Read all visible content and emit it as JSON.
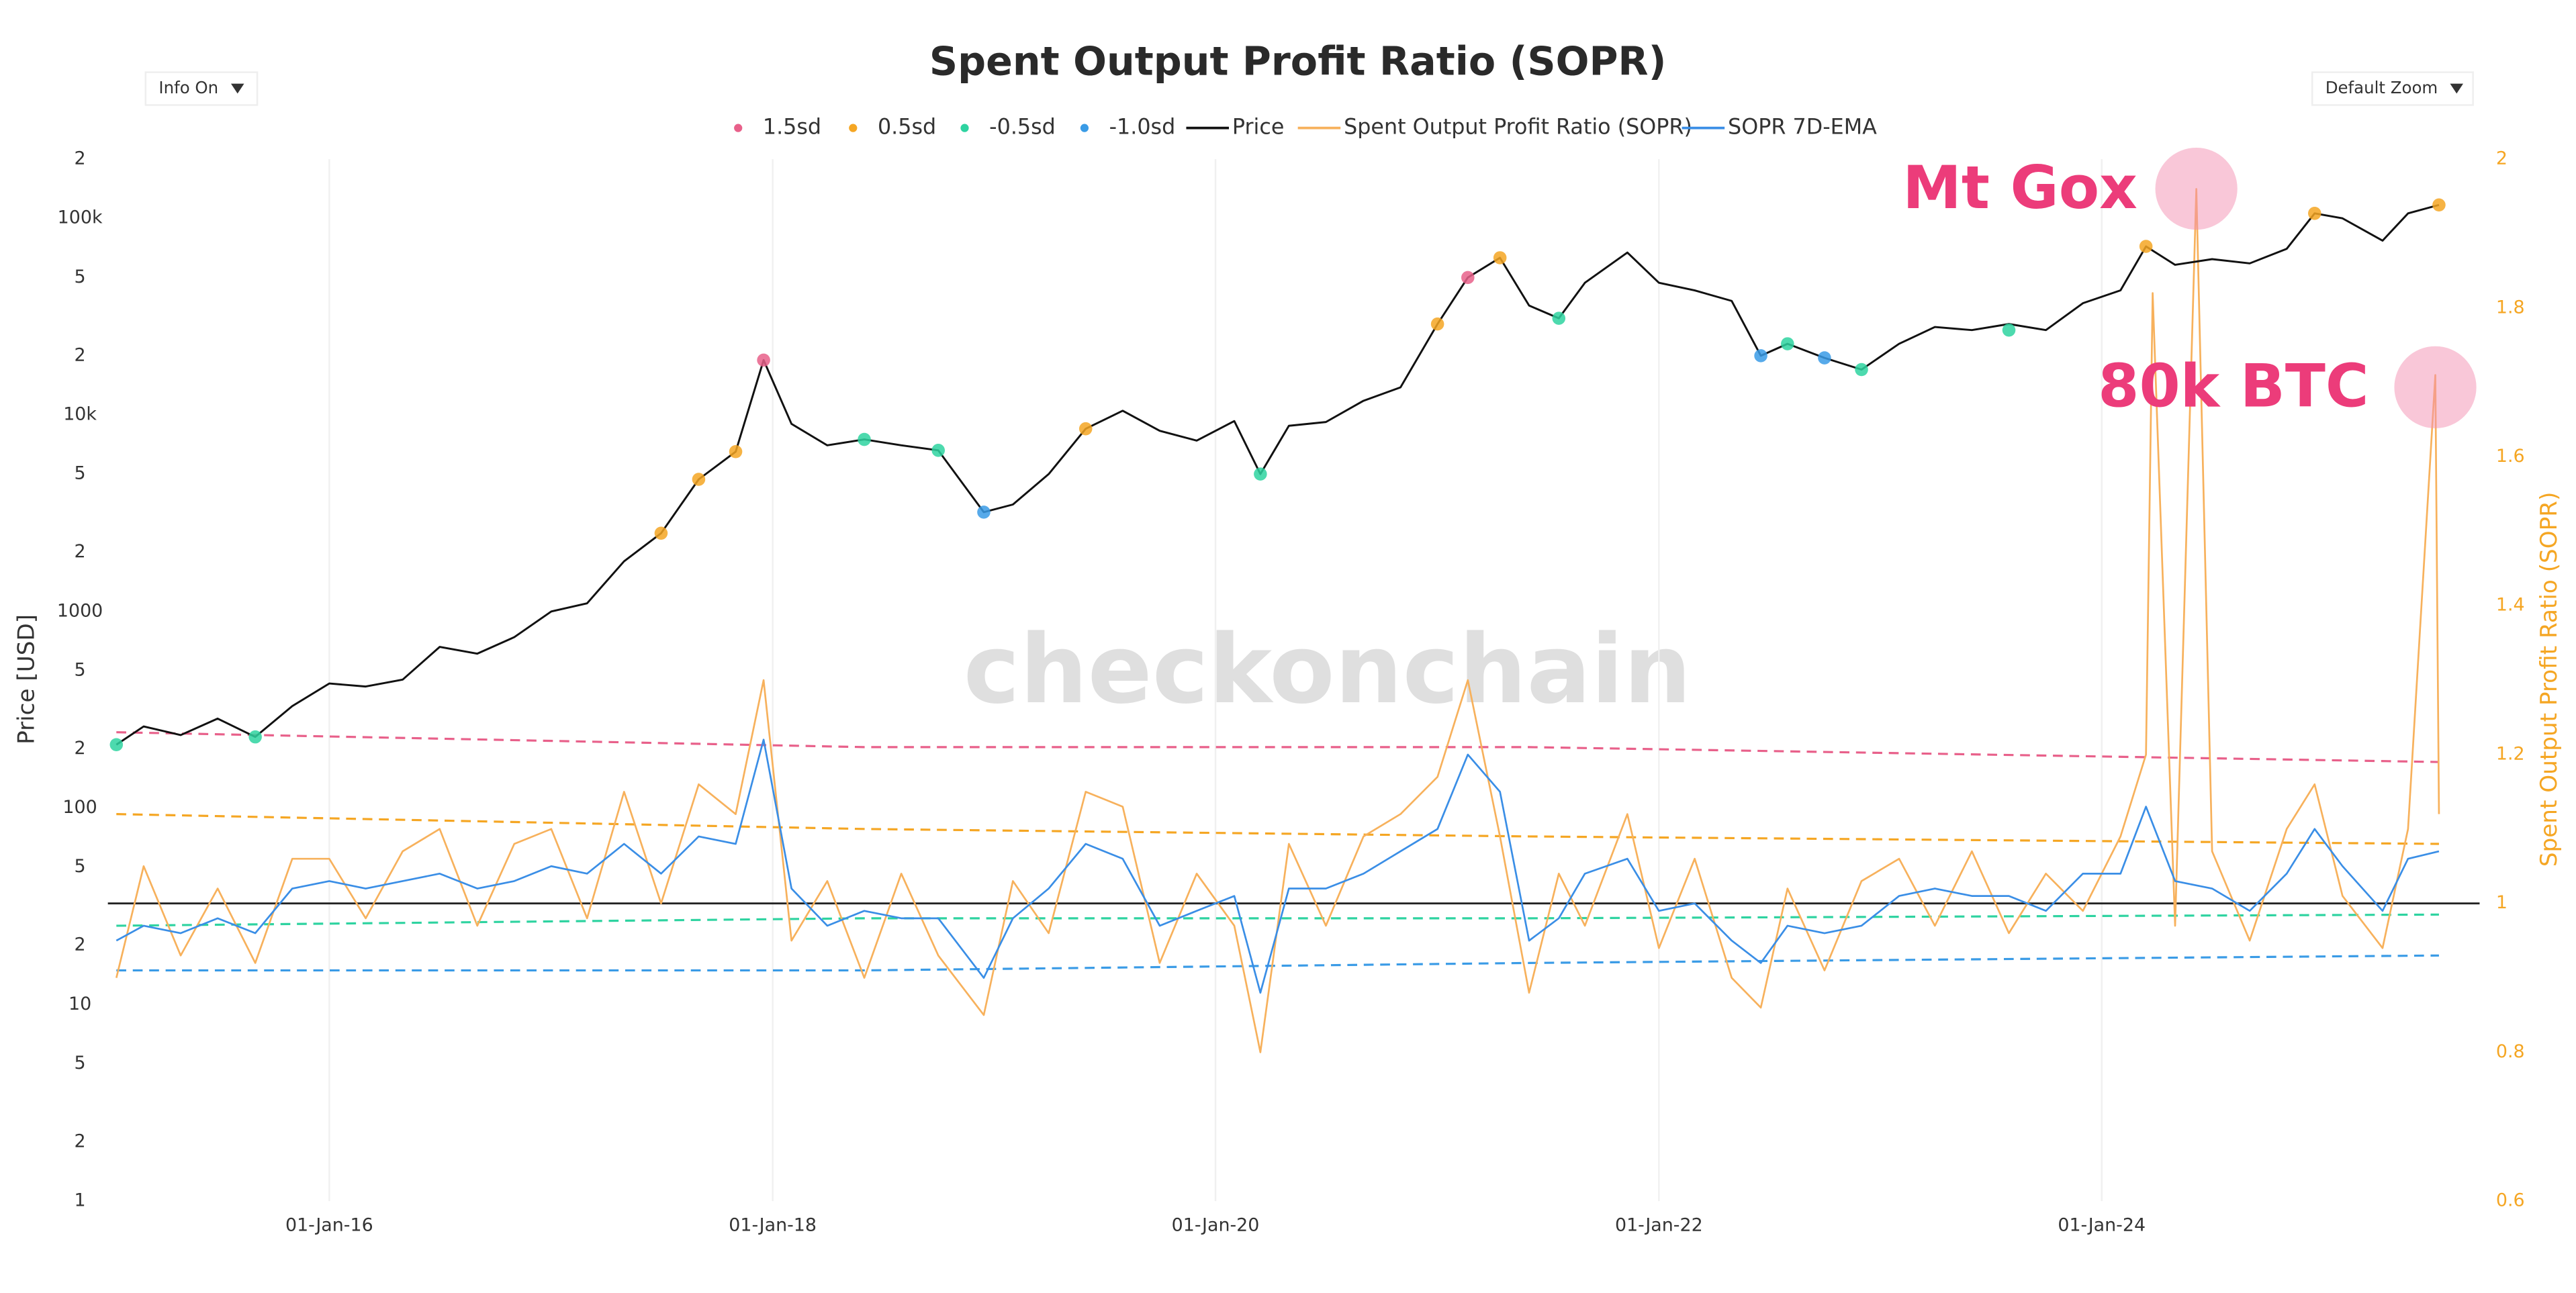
{
  "chart_data": {
    "type": "line",
    "title": "Spent Output Profit Ratio (SOPR)",
    "controls": [
      "Info On",
      "Default Zoom"
    ],
    "watermark": "checkonchain",
    "ylabel": "Price [USD]",
    "y2label": "Spent Output Profit Ratio (SOPR)",
    "log_y": true,
    "grid": true,
    "baseline": 1,
    "xlim": [
      "2015-01-01",
      "2025-09-15"
    ],
    "xticks": [
      {
        "value": "2016-01-01",
        "label": "01-Jan-16"
      },
      {
        "value": "2018-01-01",
        "label": "01-Jan-18"
      },
      {
        "value": "2020-01-01",
        "label": "01-Jan-20"
      },
      {
        "value": "2022-01-01",
        "label": "01-Jan-22"
      },
      {
        "value": "2024-01-01",
        "label": "01-Jan-24"
      }
    ],
    "ylim": [
      1,
      200000
    ],
    "yticks": [
      1,
      2,
      5,
      10,
      {
        "value": 20,
        "label": "2"
      },
      {
        "value": 50,
        "label": "5"
      },
      100,
      {
        "value": 200,
        "label": "2"
      },
      {
        "value": 500,
        "label": "5"
      },
      1000,
      {
        "value": 2000,
        "label": "2"
      },
      {
        "value": 5000,
        "label": "5"
      },
      {
        "value": 10000,
        "label": "10k"
      },
      {
        "value": 20000,
        "label": "2"
      },
      {
        "value": 50000,
        "label": "5"
      },
      {
        "value": 100000,
        "label": "100k"
      },
      {
        "value": 200000,
        "label": "2"
      }
    ],
    "y2lim": [
      0.6,
      2
    ],
    "y2ticks": [
      0.6,
      0.8,
      1,
      1.2,
      1.4,
      1.6,
      1.8,
      2
    ],
    "series": [
      {
        "name": "1.5sd",
        "kind": "marker",
        "color": "#e8608a",
        "x": [
          "2017-12-17",
          "2021-02-20"
        ],
        "values": [
          19000,
          50000
        ],
        "band": {
          "x": [
            "2015-01-15",
            "2018-06-01",
            "2021-06-01",
            "2025-07-10"
          ],
          "values": [
            1.23,
            1.21,
            1.21,
            1.19
          ]
        }
      },
      {
        "name": "0.5sd",
        "kind": "marker",
        "color": "#f5a623",
        "x": [
          "2017-07-01",
          "2017-09-01",
          "2017-11-01",
          "2019-06-01",
          "2021-01-01",
          "2021-04-14",
          "2024-03-14",
          "2024-12-17",
          "2025-07-10"
        ],
        "values": [
          2500,
          4700,
          6500,
          8500,
          29000,
          63000,
          72000,
          106000,
          117000
        ],
        "band": {
          "x": [
            "2015-01-15",
            "2018-06-01",
            "2021-06-01",
            "2025-07-10"
          ],
          "values": [
            1.12,
            1.1,
            1.09,
            1.08
          ]
        }
      },
      {
        "name": "-0.5sd",
        "kind": "marker",
        "color": "#2ed3a0",
        "x": [
          "2015-01-15",
          "2015-09-01",
          "2018-06-01",
          "2018-10-01",
          "2020-03-15",
          "2021-07-20",
          "2022-08-01",
          "2022-12-01",
          "2023-08-01"
        ],
        "values": [
          210,
          230,
          7500,
          6600,
          5000,
          31000,
          23000,
          17000,
          27000
        ],
        "band": {
          "x": [
            "2015-01-15",
            "2018-06-01",
            "2021-06-01",
            "2025-07-10"
          ],
          "values": [
            0.97,
            0.98,
            0.98,
            0.985
          ]
        }
      },
      {
        "name": "-1.0sd",
        "kind": "marker",
        "color": "#3a9be6",
        "x": [
          "2018-12-15",
          "2022-06-18",
          "2022-10-01"
        ],
        "values": [
          3200,
          20000,
          19500
        ],
        "band": {
          "x": [
            "2015-01-15",
            "2018-06-01",
            "2021-06-01",
            "2025-07-10"
          ],
          "values": [
            0.91,
            0.91,
            0.92,
            0.93
          ]
        }
      },
      {
        "name": "Price",
        "kind": "line",
        "color": "#111111",
        "axis": "y",
        "x": [
          "2015-01-15",
          "2015-03-01",
          "2015-05-01",
          "2015-07-01",
          "2015-09-01",
          "2015-11-01",
          "2016-01-01",
          "2016-03-01",
          "2016-05-01",
          "2016-07-01",
          "2016-09-01",
          "2016-11-01",
          "2017-01-01",
          "2017-03-01",
          "2017-05-01",
          "2017-07-01",
          "2017-09-01",
          "2017-11-01",
          "2017-12-17",
          "2018-02-01",
          "2018-04-01",
          "2018-06-01",
          "2018-08-01",
          "2018-10-01",
          "2018-12-15",
          "2019-02-01",
          "2019-04-01",
          "2019-06-01",
          "2019-08-01",
          "2019-10-01",
          "2019-12-01",
          "2020-02-01",
          "2020-03-15",
          "2020-05-01",
          "2020-07-01",
          "2020-09-01",
          "2020-11-01",
          "2021-01-01",
          "2021-02-20",
          "2021-04-14",
          "2021-06-01",
          "2021-07-20",
          "2021-09-01",
          "2021-11-10",
          "2022-01-01",
          "2022-03-01",
          "2022-05-01",
          "2022-06-18",
          "2022-08-01",
          "2022-10-01",
          "2022-12-01",
          "2023-02-01",
          "2023-04-01",
          "2023-06-01",
          "2023-08-01",
          "2023-10-01",
          "2023-12-01",
          "2024-02-01",
          "2024-03-14",
          "2024-05-01",
          "2024-07-01",
          "2024-09-01",
          "2024-11-01",
          "2024-12-17",
          "2025-02-01",
          "2025-04-08",
          "2025-05-20",
          "2025-07-10"
        ],
        "values": [
          210,
          260,
          235,
          285,
          230,
          330,
          430,
          415,
          450,
          660,
          610,
          740,
          1000,
          1100,
          1800,
          2500,
          4700,
          6500,
          19000,
          9000,
          7000,
          7500,
          7000,
          6600,
          3200,
          3500,
          5000,
          8500,
          10500,
          8300,
          7400,
          9300,
          5000,
          8800,
          9200,
          11800,
          13800,
          29000,
          50000,
          63000,
          36000,
          31000,
          47000,
          67000,
          47000,
          43000,
          38000,
          20000,
          23000,
          19500,
          17000,
          23000,
          28000,
          27000,
          29000,
          27000,
          37000,
          43000,
          72000,
          58000,
          62000,
          59000,
          70000,
          106000,
          100000,
          77000,
          106000,
          117000
        ]
      },
      {
        "name": "Spent Output Profit Ratio (SOPR)",
        "kind": "line",
        "color": "#f7b15c",
        "axis": "y2",
        "x": [
          "2015-01-15",
          "2015-03-01",
          "2015-05-01",
          "2015-07-01",
          "2015-09-01",
          "2015-11-01",
          "2016-01-01",
          "2016-03-01",
          "2016-05-01",
          "2016-07-01",
          "2016-09-01",
          "2016-11-01",
          "2017-01-01",
          "2017-03-01",
          "2017-05-01",
          "2017-07-01",
          "2017-09-01",
          "2017-11-01",
          "2017-12-17",
          "2018-02-01",
          "2018-04-01",
          "2018-06-01",
          "2018-08-01",
          "2018-10-01",
          "2018-12-15",
          "2019-02-01",
          "2019-04-01",
          "2019-06-01",
          "2019-08-01",
          "2019-10-01",
          "2019-12-01",
          "2020-02-01",
          "2020-03-15",
          "2020-05-01",
          "2020-07-01",
          "2020-09-01",
          "2020-11-01",
          "2021-01-01",
          "2021-02-20",
          "2021-04-14",
          "2021-06-01",
          "2021-07-20",
          "2021-09-01",
          "2021-11-10",
          "2022-01-01",
          "2022-03-01",
          "2022-05-01",
          "2022-06-18",
          "2022-08-01",
          "2022-10-01",
          "2022-12-01",
          "2023-02-01",
          "2023-04-01",
          "2023-06-01",
          "2023-08-01",
          "2023-10-01",
          "2023-12-01",
          "2024-02-01",
          "2024-03-14",
          "2024-03-25",
          "2024-05-01",
          "2024-06-05",
          "2024-07-01",
          "2024-09-01",
          "2024-11-01",
          "2024-12-17",
          "2025-02-01",
          "2025-04-08",
          "2025-05-20",
          "2025-07-04",
          "2025-07-10"
        ],
        "values": [
          0.9,
          1.05,
          0.93,
          1.02,
          0.92,
          1.06,
          1.06,
          0.98,
          1.07,
          1.1,
          0.97,
          1.08,
          1.1,
          0.98,
          1.15,
          1.0,
          1.16,
          1.12,
          1.3,
          0.95,
          1.03,
          0.9,
          1.04,
          0.93,
          0.85,
          1.03,
          0.96,
          1.15,
          1.13,
          0.92,
          1.04,
          0.97,
          0.8,
          1.08,
          0.97,
          1.09,
          1.12,
          1.17,
          1.3,
          1.09,
          0.88,
          1.04,
          0.97,
          1.12,
          0.94,
          1.06,
          0.9,
          0.86,
          1.02,
          0.91,
          1.03,
          1.06,
          0.97,
          1.07,
          0.96,
          1.04,
          0.99,
          1.09,
          1.2,
          1.82,
          0.97,
          1.96,
          1.07,
          0.95,
          1.1,
          1.16,
          1.01,
          0.94,
          1.1,
          1.71,
          1.12
        ]
      },
      {
        "name": "SOPR 7D-EMA",
        "kind": "line",
        "color": "#3a8ee6",
        "axis": "y2",
        "x": [
          "2015-01-15",
          "2015-03-01",
          "2015-05-01",
          "2015-07-01",
          "2015-09-01",
          "2015-11-01",
          "2016-01-01",
          "2016-03-01",
          "2016-05-01",
          "2016-07-01",
          "2016-09-01",
          "2016-11-01",
          "2017-01-01",
          "2017-03-01",
          "2017-05-01",
          "2017-07-01",
          "2017-09-01",
          "2017-11-01",
          "2017-12-17",
          "2018-02-01",
          "2018-04-01",
          "2018-06-01",
          "2018-08-01",
          "2018-10-01",
          "2018-12-15",
          "2019-02-01",
          "2019-04-01",
          "2019-06-01",
          "2019-08-01",
          "2019-10-01",
          "2019-12-01",
          "2020-02-01",
          "2020-03-15",
          "2020-05-01",
          "2020-07-01",
          "2020-09-01",
          "2020-11-01",
          "2021-01-01",
          "2021-02-20",
          "2021-04-14",
          "2021-06-01",
          "2021-07-20",
          "2021-09-01",
          "2021-11-10",
          "2022-01-01",
          "2022-03-01",
          "2022-05-01",
          "2022-06-18",
          "2022-08-01",
          "2022-10-01",
          "2022-12-01",
          "2023-02-01",
          "2023-04-01",
          "2023-06-01",
          "2023-08-01",
          "2023-10-01",
          "2023-12-01",
          "2024-02-01",
          "2024-03-14",
          "2024-05-01",
          "2024-07-01",
          "2024-09-01",
          "2024-11-01",
          "2024-12-17",
          "2025-02-01",
          "2025-04-08",
          "2025-05-20",
          "2025-07-10"
        ],
        "values": [
          0.95,
          0.97,
          0.96,
          0.98,
          0.96,
          1.02,
          1.03,
          1.02,
          1.03,
          1.04,
          1.02,
          1.03,
          1.05,
          1.04,
          1.08,
          1.04,
          1.09,
          1.08,
          1.22,
          1.02,
          0.97,
          0.99,
          0.98,
          0.98,
          0.9,
          0.98,
          1.02,
          1.08,
          1.06,
          0.97,
          0.99,
          1.01,
          0.88,
          1.02,
          1.02,
          1.04,
          1.07,
          1.1,
          1.2,
          1.15,
          0.95,
          0.98,
          1.04,
          1.06,
          0.99,
          1.0,
          0.95,
          0.92,
          0.97,
          0.96,
          0.97,
          1.01,
          1.02,
          1.01,
          1.01,
          0.99,
          1.04,
          1.04,
          1.13,
          1.03,
          1.02,
          0.99,
          1.04,
          1.1,
          1.05,
          0.99,
          1.06,
          1.07
        ]
      }
    ],
    "annotations": [
      {
        "text": "Mt Gox",
        "x": "2024-06-05",
        "y": 1.96
      },
      {
        "text": "80k BTC",
        "x": "2025-07-04",
        "y": 1.71
      }
    ]
  }
}
